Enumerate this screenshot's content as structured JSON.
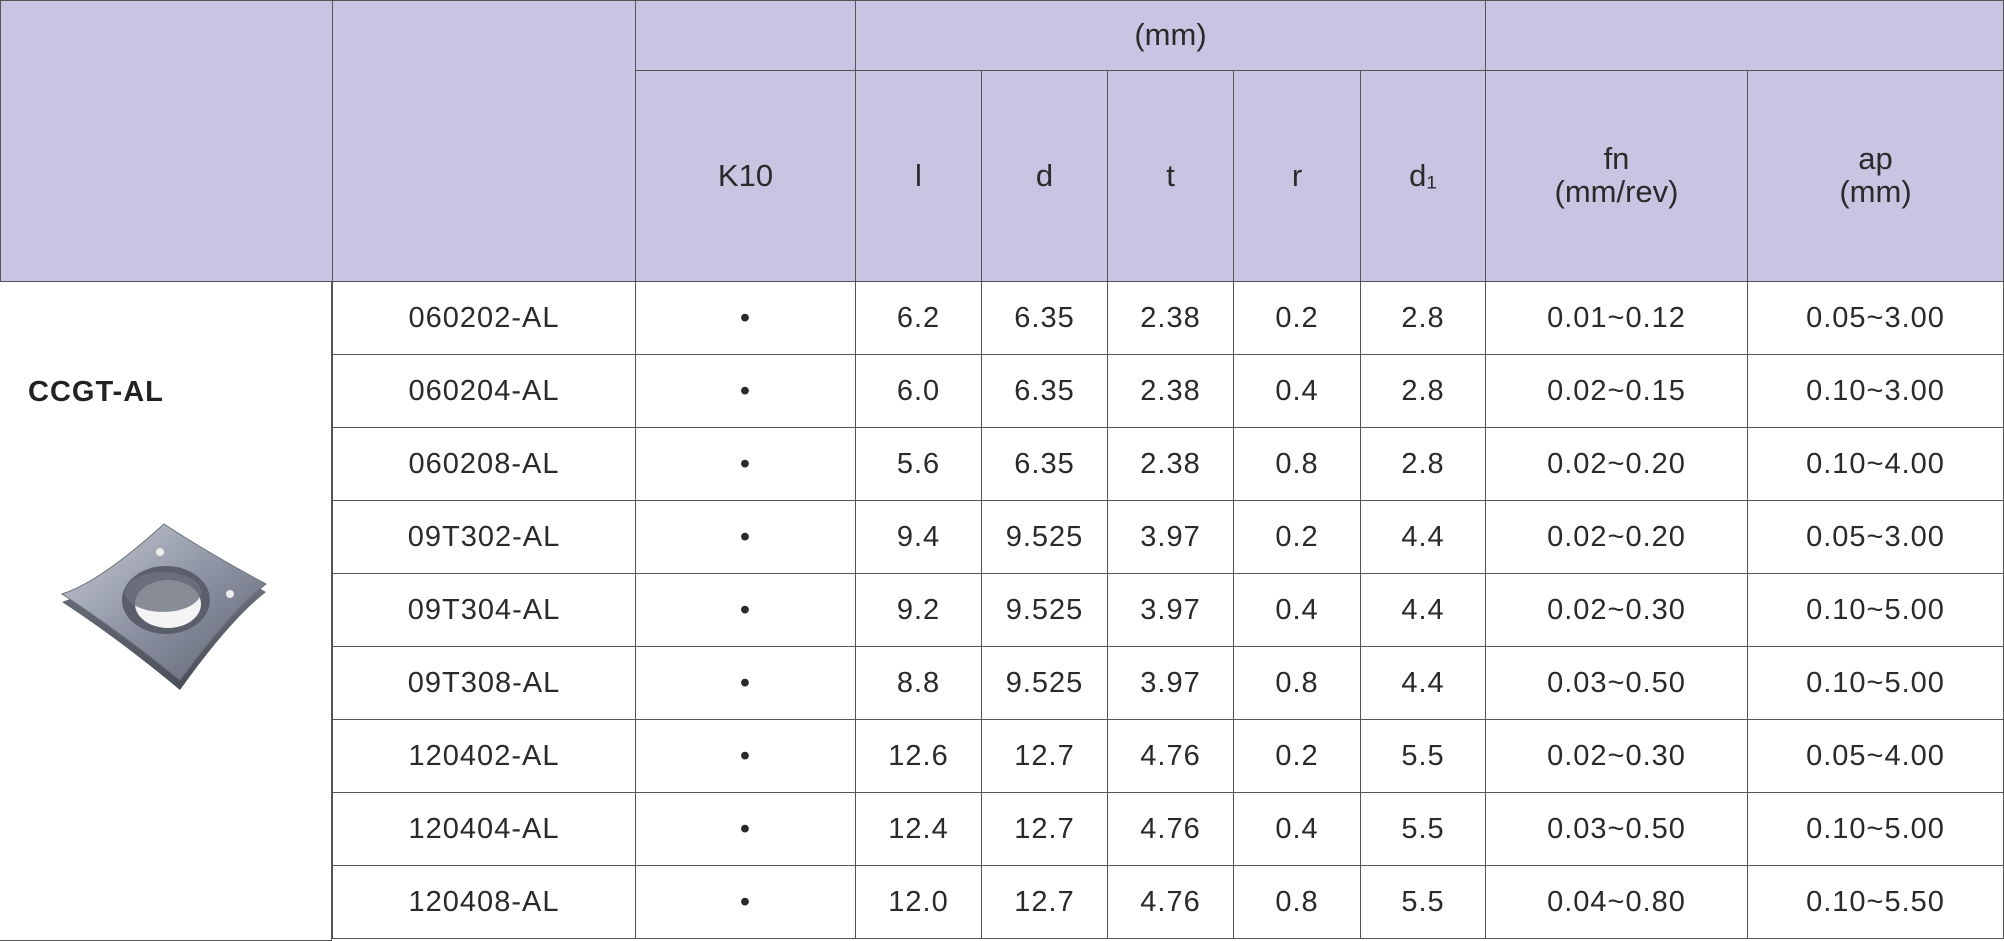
{
  "table": {
    "header_top": [
      "(mm)"
    ],
    "header": [
      "K10",
      "l",
      "d",
      "t",
      "r",
      "d₁",
      "fn\n(mm/rev)",
      "ap\n(mm)"
    ],
    "group_label": "CCGT-AL",
    "rows": [
      [
        "060202-AL",
        "•",
        "6.2",
        "6.35",
        "2.38",
        "0.2",
        "2.8",
        "0.01~0.12",
        "0.05~3.00"
      ],
      [
        "060204-AL",
        "•",
        "6.0",
        "6.35",
        "2.38",
        "0.4",
        "2.8",
        "0.02~0.15",
        "0.10~3.00"
      ],
      [
        "060208-AL",
        "•",
        "5.6",
        "6.35",
        "2.38",
        "0.8",
        "2.8",
        "0.02~0.20",
        "0.10~4.00"
      ],
      [
        "09T302-AL",
        "•",
        "9.4",
        "9.525",
        "3.97",
        "0.2",
        "4.4",
        "0.02~0.20",
        "0.05~3.00"
      ],
      [
        "09T304-AL",
        "•",
        "9.2",
        "9.525",
        "3.97",
        "0.4",
        "4.4",
        "0.02~0.30",
        "0.10~5.00"
      ],
      [
        "09T308-AL",
        "•",
        "8.8",
        "9.525",
        "3.97",
        "0.8",
        "4.4",
        "0.03~0.50",
        "0.10~5.00"
      ],
      [
        "120402-AL",
        "•",
        "12.6",
        "12.7",
        "4.76",
        "0.2",
        "5.5",
        "0.02~0.30",
        "0.05~4.00"
      ],
      [
        "120404-AL",
        "•",
        "12.4",
        "12.7",
        "4.76",
        "0.4",
        "5.5",
        "0.03~0.50",
        "0.10~5.00"
      ],
      [
        "120408-AL",
        "•",
        "12.0",
        "12.7",
        "4.76",
        "0.8",
        "5.5",
        "0.04~0.80",
        "0.10~5.50"
      ]
    ]
  }
}
